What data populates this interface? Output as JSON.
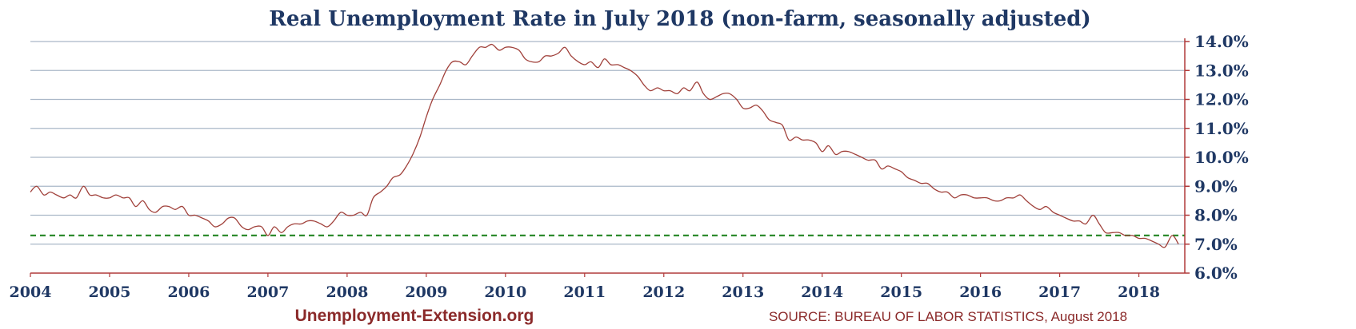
{
  "chart_data": {
    "type": "line",
    "title": "Real Unemployment Rate in July 2018 (non-farm, seasonally adjusted)",
    "xlabel": "",
    "ylabel": "",
    "x_range": [
      2004,
      2018.58
    ],
    "ylim": [
      6.0,
      14.0
    ],
    "y_ticks": [
      "6.0%",
      "7.0%",
      "8.0%",
      "9.0%",
      "10.0%",
      "11.0%",
      "12.0%",
      "13.0%",
      "14.0%"
    ],
    "x_ticks": [
      "2004",
      "2005",
      "2006",
      "2007",
      "2008",
      "2009",
      "2010",
      "2011",
      "2012",
      "2013",
      "2014",
      "2015",
      "2016",
      "2017",
      "2018"
    ],
    "grid": true,
    "y_axis_position": "right",
    "colors": {
      "line": "#a0403a",
      "reference": "#2e8b2e",
      "grid": "#aab8c8",
      "axis": "#b03a3a",
      "text": "#1f3864"
    },
    "reference_line": {
      "value": 7.3,
      "style": "dashed"
    },
    "series": [
      {
        "x": [
          2004.0,
          2004.08,
          2004.17,
          2004.25,
          2004.33,
          2004.42,
          2004.5,
          2004.58,
          2004.67,
          2004.75,
          2004.83,
          2004.92,
          2005.0,
          2005.08,
          2005.17,
          2005.25,
          2005.33,
          2005.42,
          2005.5,
          2005.58,
          2005.67,
          2005.75,
          2005.83,
          2005.92,
          2006.0,
          2006.08,
          2006.17,
          2006.25,
          2006.33,
          2006.42,
          2006.5,
          2006.58,
          2006.67,
          2006.75,
          2006.83,
          2006.92,
          2007.0,
          2007.08,
          2007.17,
          2007.25,
          2007.33,
          2007.42,
          2007.5,
          2007.58,
          2007.67,
          2007.75,
          2007.83,
          2007.92,
          2008.0,
          2008.08,
          2008.17,
          2008.25,
          2008.33,
          2008.42,
          2008.5,
          2008.58,
          2008.67,
          2008.75,
          2008.83,
          2008.92,
          2009.0,
          2009.08,
          2009.17,
          2009.25,
          2009.33,
          2009.42,
          2009.5,
          2009.58,
          2009.67,
          2009.75,
          2009.83,
          2009.92,
          2010.0,
          2010.08,
          2010.17,
          2010.25,
          2010.33,
          2010.42,
          2010.5,
          2010.58,
          2010.67,
          2010.75,
          2010.83,
          2010.92,
          2011.0,
          2011.08,
          2011.17,
          2011.25,
          2011.33,
          2011.42,
          2011.5,
          2011.58,
          2011.67,
          2011.75,
          2011.83,
          2011.92,
          2012.0,
          2012.08,
          2012.17,
          2012.25,
          2012.33,
          2012.42,
          2012.5,
          2012.58,
          2012.67,
          2012.75,
          2012.83,
          2012.92,
          2013.0,
          2013.08,
          2013.17,
          2013.25,
          2013.33,
          2013.42,
          2013.5,
          2013.58,
          2013.67,
          2013.75,
          2013.83,
          2013.92,
          2014.0,
          2014.08,
          2014.17,
          2014.25,
          2014.33,
          2014.42,
          2014.5,
          2014.58,
          2014.67,
          2014.75,
          2014.83,
          2014.92,
          2015.0,
          2015.08,
          2015.17,
          2015.25,
          2015.33,
          2015.42,
          2015.5,
          2015.58,
          2015.67,
          2015.75,
          2015.83,
          2015.92,
          2016.0,
          2016.08,
          2016.17,
          2016.25,
          2016.33,
          2016.42,
          2016.5,
          2016.58,
          2016.67,
          2016.75,
          2016.83,
          2016.92,
          2017.0,
          2017.08,
          2017.17,
          2017.25,
          2017.33,
          2017.42,
          2017.5,
          2017.58,
          2017.67,
          2017.75,
          2017.83,
          2017.92,
          2018.0,
          2018.08,
          2018.17,
          2018.25,
          2018.33,
          2018.42,
          2018.5
        ],
        "values": [
          8.8,
          9.0,
          8.7,
          8.8,
          8.7,
          8.6,
          8.7,
          8.6,
          9.0,
          8.7,
          8.7,
          8.6,
          8.6,
          8.7,
          8.6,
          8.6,
          8.3,
          8.5,
          8.2,
          8.1,
          8.3,
          8.3,
          8.2,
          8.3,
          8.0,
          8.0,
          7.9,
          7.8,
          7.6,
          7.7,
          7.9,
          7.9,
          7.6,
          7.5,
          7.6,
          7.6,
          7.3,
          7.6,
          7.4,
          7.6,
          7.7,
          7.7,
          7.8,
          7.8,
          7.7,
          7.6,
          7.8,
          8.1,
          8.0,
          8.0,
          8.1,
          8.0,
          8.6,
          8.8,
          9.0,
          9.3,
          9.4,
          9.7,
          10.1,
          10.7,
          11.4,
          12.0,
          12.5,
          13.0,
          13.3,
          13.3,
          13.2,
          13.5,
          13.8,
          13.8,
          13.9,
          13.7,
          13.8,
          13.8,
          13.7,
          13.4,
          13.3,
          13.3,
          13.5,
          13.5,
          13.6,
          13.8,
          13.5,
          13.3,
          13.2,
          13.3,
          13.1,
          13.4,
          13.2,
          13.2,
          13.1,
          13.0,
          12.8,
          12.5,
          12.3,
          12.4,
          12.3,
          12.3,
          12.2,
          12.4,
          12.3,
          12.6,
          12.2,
          12.0,
          12.1,
          12.2,
          12.2,
          12.0,
          11.7,
          11.7,
          11.8,
          11.6,
          11.3,
          11.2,
          11.1,
          10.6,
          10.7,
          10.6,
          10.6,
          10.5,
          10.2,
          10.4,
          10.1,
          10.2,
          10.2,
          10.1,
          10.0,
          9.9,
          9.9,
          9.6,
          9.7,
          9.6,
          9.5,
          9.3,
          9.2,
          9.1,
          9.1,
          8.9,
          8.8,
          8.8,
          8.6,
          8.7,
          8.7,
          8.6,
          8.6,
          8.6,
          8.5,
          8.5,
          8.6,
          8.6,
          8.7,
          8.5,
          8.3,
          8.2,
          8.3,
          8.1,
          8.0,
          7.9,
          7.8,
          7.8,
          7.7,
          8.0,
          7.7,
          7.4,
          7.4,
          7.4,
          7.3,
          7.3,
          7.2,
          7.2,
          7.1,
          7.0,
          6.9,
          7.3,
          7.0
        ]
      }
    ]
  },
  "footer": {
    "site": "Unemployment-Extension.org",
    "source": "SOURCE: BUREAU OF LABOR STATISTICS, August 2018"
  }
}
